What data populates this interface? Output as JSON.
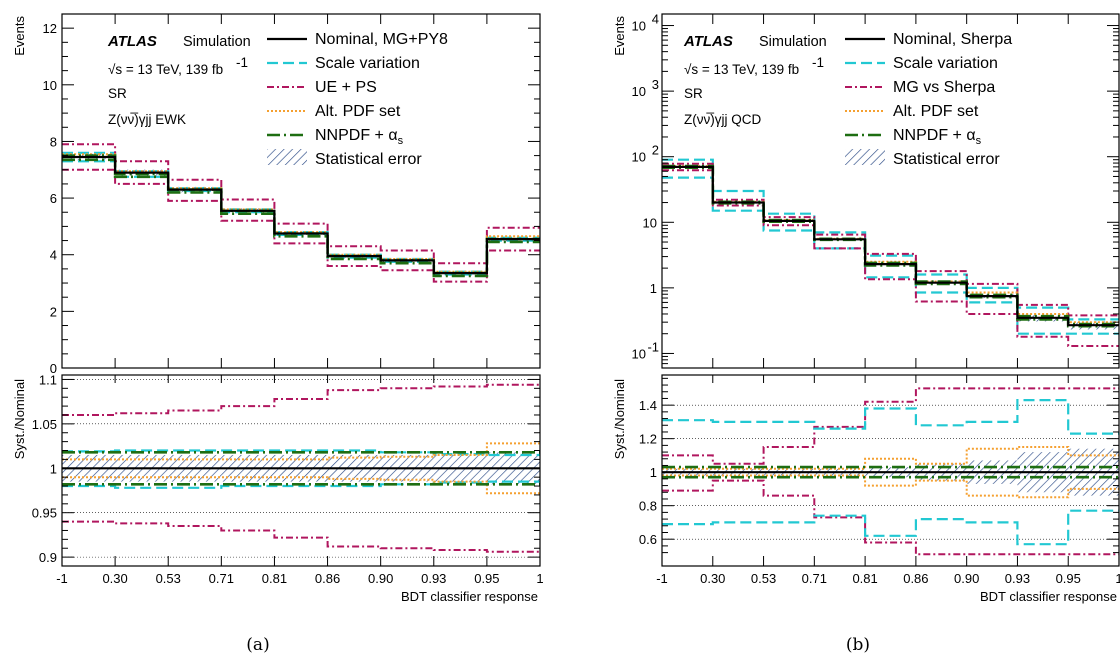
{
  "figure": {
    "caption_a": "(a)",
    "caption_b": "(b)"
  },
  "colors": {
    "nominal": "#000000",
    "scale": "#22c8d2",
    "ue_ps": "#b0165e",
    "alt_pdf": "#f5a030",
    "nnpdf": "#1e6e12",
    "stat": "#2a4a86"
  },
  "chart_data": [
    {
      "panel": "a",
      "type": "line",
      "step": true,
      "xlabel": "BDT classifier response",
      "x_tick_labels": [
        "-1",
        "0.30",
        "0.53",
        "0.71",
        "0.81",
        "0.86",
        "0.90",
        "0.93",
        "0.95",
        "1"
      ],
      "atlas": "ATLAS",
      "atlas_sub": "Simulation",
      "energy": "√s = 13 TeV, 139 fb",
      "energy_sup": "-1",
      "region": "SR",
      "process": "Z(νν̅)γjj EWK",
      "top": {
        "ylabel": "Events",
        "yscale": "linear",
        "ylim": [
          0,
          12.5
        ],
        "yticks": [
          0,
          2,
          4,
          6,
          8,
          10,
          12
        ],
        "ytick_labels": [
          "0",
          "2",
          "4",
          "6",
          "8",
          "10",
          "12"
        ],
        "series": [
          {
            "name": "Nominal, MG+PY8",
            "key": "nominal",
            "values": [
              7.45,
              6.9,
              6.3,
              5.55,
              4.75,
              3.95,
              3.8,
              3.35,
              4.55
            ]
          },
          {
            "name": "Scale variation",
            "key": "scale",
            "values": [
              7.6,
              6.75,
              6.25,
              5.6,
              4.8,
              4.0,
              3.75,
              3.4,
              4.6
            ],
            "values_low": [
              7.3,
              6.95,
              6.35,
              5.5,
              4.7,
              3.9,
              3.85,
              3.3,
              4.5
            ]
          },
          {
            "name": "UE + PS",
            "key": "ue_ps",
            "values": [
              7.9,
              7.3,
              6.65,
              5.95,
              5.1,
              4.3,
              4.15,
              3.7,
              4.95
            ],
            "values_low": [
              7.0,
              6.5,
              5.9,
              5.2,
              4.4,
              3.6,
              3.45,
              3.05,
              4.15
            ]
          },
          {
            "name": "Alt. PDF set",
            "key": "alt_pdf",
            "values": [
              7.55,
              6.95,
              6.35,
              5.6,
              4.8,
              4.0,
              3.85,
              3.4,
              4.65
            ]
          },
          {
            "name": "NNPDF + αs",
            "key": "nnpdf",
            "values": [
              7.5,
              6.85,
              6.3,
              5.55,
              4.75,
              3.95,
              3.8,
              3.35,
              4.55
            ],
            "values_low": [
              7.35,
              6.75,
              6.2,
              5.45,
              4.65,
              3.85,
              3.7,
              3.25,
              4.45
            ]
          }
        ],
        "stat_label": "Statistical error",
        "stat_rel": [
          0.015,
          0.015,
          0.015,
          0.015,
          0.015,
          0.015,
          0.015,
          0.015,
          0.018
        ]
      },
      "ratio": {
        "ylabel": "Syst./Nominal",
        "ylim": [
          0.89,
          1.105
        ],
        "yticks": [
          0.9,
          0.95,
          1.0,
          1.05,
          1.1
        ],
        "ytick_labels": [
          "0.9",
          "0.95",
          "1",
          "1.05",
          "1.1"
        ],
        "gridlines": [
          0.9,
          0.95,
          1.0,
          1.05,
          1.1
        ],
        "stat_up": [
          1.015,
          1.015,
          1.015,
          1.015,
          1.015,
          1.015,
          1.015,
          1.015,
          1.018
        ],
        "stat_down": [
          0.985,
          0.985,
          0.985,
          0.985,
          0.985,
          0.985,
          0.985,
          0.985,
          0.982
        ],
        "series": [
          {
            "key": "ue_ps",
            "values": [
              1.06,
              1.062,
              1.065,
              1.07,
              1.078,
              1.088,
              1.09,
              1.092,
              1.094
            ]
          },
          {
            "key": "ue_ps",
            "values": [
              0.94,
              0.938,
              0.935,
              0.93,
              0.922,
              0.912,
              0.91,
              0.908,
              0.906
            ]
          },
          {
            "key": "scale",
            "values": [
              1.019,
              1.02,
              1.02,
              1.02,
              1.02,
              1.02,
              1.018,
              1.016,
              1.015
            ]
          },
          {
            "key": "scale",
            "values": [
              0.98,
              0.978,
              0.978,
              0.98,
              0.98,
              0.98,
              0.982,
              0.984,
              0.985
            ]
          },
          {
            "key": "alt_pdf",
            "values": [
              1.01,
              1.01,
              1.01,
              1.01,
              1.01,
              1.012,
              1.013,
              1.015,
              1.028
            ]
          },
          {
            "key": "alt_pdf",
            "values": [
              0.99,
              0.99,
              0.99,
              0.99,
              0.99,
              0.988,
              0.987,
              0.985,
              0.972
            ]
          },
          {
            "key": "nnpdf",
            "values": [
              1.018,
              1.018,
              1.018,
              1.018,
              1.018,
              1.018,
              1.018,
              1.018,
              1.018
            ]
          },
          {
            "key": "nnpdf",
            "values": [
              0.982,
              0.982,
              0.982,
              0.982,
              0.982,
              0.982,
              0.982,
              0.982,
              0.982
            ]
          },
          {
            "key": "nominal",
            "values": [
              1,
              1,
              1,
              1,
              1,
              1,
              1,
              1,
              1
            ]
          }
        ]
      }
    },
    {
      "panel": "b",
      "type": "line",
      "step": true,
      "xlabel": "BDT classifier response",
      "x_tick_labels": [
        "-1",
        "0.30",
        "0.53",
        "0.71",
        "0.81",
        "0.86",
        "0.90",
        "0.93",
        "0.95",
        "1"
      ],
      "atlas": "ATLAS",
      "atlas_sub": "Simulation",
      "energy": "√s = 13 TeV, 139 fb",
      "energy_sup": "-1",
      "region": "SR",
      "process": "Z(νν̅)γjj QCD",
      "top": {
        "ylabel": "Events",
        "yscale": "log",
        "ylim": [
          0.06,
          15000
        ],
        "yticks": [
          0.1,
          1,
          10,
          100,
          1000,
          10000
        ],
        "ytick_labels": [
          "10",
          "1",
          "10",
          "10",
          "10",
          "10"
        ],
        "ytick_sups": [
          "-1",
          "",
          "",
          "2",
          "3",
          "4"
        ],
        "series": [
          {
            "name": "Nominal, Sherpa",
            "key": "nominal",
            "values": [
              70,
              20,
              10.5,
              5.5,
              2.3,
              1.2,
              0.75,
              0.35,
              0.27
            ]
          },
          {
            "name": "Scale variation",
            "key": "scale",
            "values": [
              90,
              30,
              13.5,
              7.0,
              3.1,
              1.6,
              1.0,
              0.5,
              0.33
            ],
            "values_low": [
              48,
              15,
              7.5,
              4.0,
              1.45,
              0.85,
              0.6,
              0.2,
              0.2
            ]
          },
          {
            "name": "MG vs Sherpa",
            "key": "ue_ps",
            "values": [
              78,
              22,
              12.0,
              6.5,
              3.3,
              1.8,
              1.15,
              0.55,
              0.38
            ],
            "values_low": [
              62,
              18,
              9.0,
              4.0,
              1.35,
              0.62,
              0.4,
              0.18,
              0.13
            ]
          },
          {
            "name": "Alt. PDF set",
            "key": "alt_pdf",
            "values": [
              72,
              20.5,
              10.8,
              5.6,
              2.5,
              1.25,
              0.85,
              0.4,
              0.3
            ]
          },
          {
            "name": "NNPDF + αs",
            "key": "nnpdf",
            "values": [
              72,
              20.5,
              10.8,
              5.6,
              2.4,
              1.25,
              0.78,
              0.37,
              0.28
            ],
            "values_low": [
              68,
              19.5,
              10.2,
              5.4,
              2.2,
              1.15,
              0.72,
              0.33,
              0.26
            ]
          }
        ],
        "stat_label": "Statistical error",
        "stat_rel": [
          0.02,
          0.02,
          0.02,
          0.02,
          0.03,
          0.05,
          0.07,
          0.12,
          0.14
        ]
      },
      "ratio": {
        "ylabel": "Syst./Nominal",
        "ylim": [
          0.44,
          1.58
        ],
        "yticks": [
          0.6,
          0.8,
          1.0,
          1.2,
          1.4
        ],
        "ytick_labels": [
          "0.6",
          "0.8",
          "1",
          "1.2",
          "1.4"
        ],
        "gridlines": [
          0.6,
          0.8,
          1.0,
          1.2,
          1.4
        ],
        "stat_up": [
          1.02,
          1.02,
          1.02,
          1.02,
          1.03,
          1.05,
          1.07,
          1.12,
          1.14
        ],
        "stat_down": [
          0.98,
          0.98,
          0.98,
          0.98,
          0.97,
          0.95,
          0.93,
          0.88,
          0.86
        ],
        "series": [
          {
            "key": "ue_ps",
            "values": [
              1.1,
              1.05,
              1.15,
              1.27,
              1.42,
              1.5,
              1.5,
              1.5,
              1.5
            ]
          },
          {
            "key": "ue_ps",
            "values": [
              0.89,
              0.95,
              0.86,
              0.73,
              0.58,
              0.51,
              0.51,
              0.51,
              0.51
            ]
          },
          {
            "key": "scale",
            "values": [
              1.31,
              1.3,
              1.3,
              1.26,
              1.38,
              1.28,
              1.3,
              1.43,
              1.23
            ]
          },
          {
            "key": "scale",
            "values": [
              0.69,
              0.7,
              0.7,
              0.74,
              0.62,
              0.72,
              0.7,
              0.57,
              0.77
            ]
          },
          {
            "key": "alt_pdf",
            "values": [
              1.02,
              1.02,
              1.02,
              1.02,
              1.08,
              1.05,
              1.14,
              1.15,
              1.1
            ]
          },
          {
            "key": "alt_pdf",
            "values": [
              0.98,
              0.98,
              0.98,
              0.98,
              0.92,
              0.95,
              0.86,
              0.85,
              0.9
            ]
          },
          {
            "key": "nnpdf",
            "values": [
              1.03,
              1.03,
              1.03,
              1.03,
              1.03,
              1.03,
              1.03,
              1.03,
              1.03
            ]
          },
          {
            "key": "nnpdf",
            "values": [
              0.97,
              0.97,
              0.97,
              0.97,
              0.97,
              0.97,
              0.97,
              0.97,
              0.97
            ]
          },
          {
            "key": "nominal",
            "values": [
              1,
              1,
              1,
              1,
              1,
              1,
              1,
              1,
              1
            ]
          }
        ]
      }
    }
  ]
}
